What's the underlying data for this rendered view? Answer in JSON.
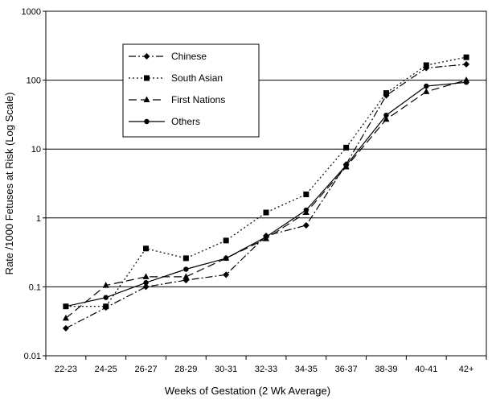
{
  "chart_data": {
    "type": "line",
    "xlabel": "Weeks of Gestation (2 Wk Average)",
    "ylabel": "Rate /1000 Fetuses at Risk (Log Scale)",
    "yscale": "log",
    "ylim": [
      0.01,
      1000
    ],
    "yticks": [
      "0.01",
      "0.1",
      "1",
      "10",
      "100",
      "1000"
    ],
    "grid": "horizontal",
    "legend_position": "upper-left (boxed)",
    "categories": [
      "22-23",
      "24-25",
      "26-27",
      "28-29",
      "30-31",
      "32-33",
      "34-35",
      "36-37",
      "38-39",
      "40-41",
      "42+"
    ],
    "series": [
      {
        "name": "Chinese",
        "marker": "diamond",
        "dash": "dash-dot",
        "color": "#000000",
        "values": [
          0.025,
          0.05,
          0.1,
          0.125,
          0.15,
          0.55,
          0.78,
          6.0,
          60,
          150,
          170
        ]
      },
      {
        "name": "South Asian",
        "marker": "square",
        "dash": "dotted",
        "color": "#000000",
        "values": [
          0.052,
          0.052,
          0.36,
          0.26,
          0.47,
          1.2,
          2.2,
          10.5,
          65,
          165,
          215
        ]
      },
      {
        "name": "First Nations",
        "marker": "triangle",
        "dash": "long-dash",
        "color": "#000000",
        "values": [
          0.035,
          0.105,
          0.14,
          0.14,
          0.26,
          0.5,
          1.2,
          5.5,
          27,
          68,
          100
        ]
      },
      {
        "name": "Others",
        "marker": "circle",
        "dash": "solid",
        "color": "#000000",
        "values": [
          0.052,
          0.07,
          0.115,
          0.18,
          0.26,
          0.53,
          1.3,
          5.8,
          31,
          82,
          93
        ]
      }
    ]
  }
}
